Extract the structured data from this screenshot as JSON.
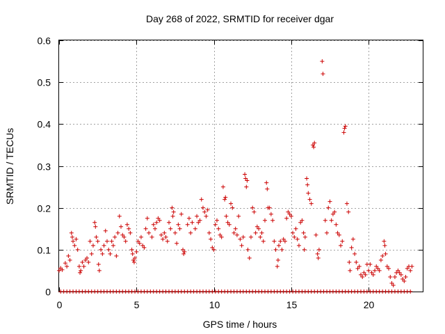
{
  "chart_data": {
    "type": "scatter",
    "title": "Day 268 of 2022, SRMTID for receiver dgar",
    "xlabel": "GPS time / hours",
    "ylabel": "SRMTID / TECUs",
    "xlim": [
      0,
      23.5
    ],
    "ylim": [
      0,
      0.6
    ],
    "xticks": [
      0,
      5,
      10,
      15,
      20
    ],
    "yticks": [
      0,
      0.1,
      0.2,
      0.3,
      0.4,
      0.5,
      0.6
    ],
    "ytick_labels": [
      "0",
      "0.1",
      "0.2",
      "0.3",
      "0.4",
      "0.5",
      "0.6"
    ],
    "grid": true,
    "marker": "plus",
    "color": "#cc0000",
    "series": [
      {
        "name": "SRMTID",
        "points": [
          [
            0.0,
            0.05
          ],
          [
            0.1,
            0.056
          ],
          [
            0.2,
            0.052
          ],
          [
            0.4,
            0.068
          ],
          [
            0.5,
            0.06
          ],
          [
            0.6,
            0.085
          ],
          [
            0.7,
            0.075
          ],
          [
            0.8,
            0.14
          ],
          [
            0.85,
            0.13
          ],
          [
            0.9,
            0.12
          ],
          [
            1.0,
            0.11
          ],
          [
            1.1,
            0.125
          ],
          [
            1.2,
            0.1
          ],
          [
            1.3,
            0.06
          ],
          [
            1.35,
            0.045
          ],
          [
            1.4,
            0.05
          ],
          [
            1.5,
            0.07
          ],
          [
            1.6,
            0.06
          ],
          [
            1.7,
            0.075
          ],
          [
            1.8,
            0.08
          ],
          [
            1.9,
            0.07
          ],
          [
            2.0,
            0.12
          ],
          [
            2.1,
            0.09
          ],
          [
            2.2,
            0.11
          ],
          [
            2.3,
            0.165
          ],
          [
            2.35,
            0.155
          ],
          [
            2.4,
            0.13
          ],
          [
            2.5,
            0.12
          ],
          [
            2.55,
            0.065
          ],
          [
            2.6,
            0.05
          ],
          [
            2.7,
            0.1
          ],
          [
            2.8,
            0.09
          ],
          [
            2.9,
            0.11
          ],
          [
            3.0,
            0.145
          ],
          [
            3.1,
            0.12
          ],
          [
            3.2,
            0.1
          ],
          [
            3.3,
            0.09
          ],
          [
            3.4,
            0.12
          ],
          [
            3.5,
            0.11
          ],
          [
            3.6,
            0.13
          ],
          [
            3.7,
            0.085
          ],
          [
            3.8,
            0.14
          ],
          [
            3.9,
            0.18
          ],
          [
            4.0,
            0.155
          ],
          [
            4.1,
            0.135
          ],
          [
            4.2,
            0.13
          ],
          [
            4.3,
            0.12
          ],
          [
            4.4,
            0.16
          ],
          [
            4.5,
            0.15
          ],
          [
            4.6,
            0.14
          ],
          [
            4.7,
            0.1
          ],
          [
            4.75,
            0.09
          ],
          [
            4.8,
            0.075
          ],
          [
            4.85,
            0.07
          ],
          [
            4.9,
            0.08
          ],
          [
            5.0,
            0.095
          ],
          [
            5.1,
            0.12
          ],
          [
            5.2,
            0.115
          ],
          [
            5.3,
            0.13
          ],
          [
            5.4,
            0.11
          ],
          [
            5.5,
            0.105
          ],
          [
            5.6,
            0.15
          ],
          [
            5.7,
            0.175
          ],
          [
            5.8,
            0.14
          ],
          [
            6.0,
            0.13
          ],
          [
            6.1,
            0.16
          ],
          [
            6.2,
            0.15
          ],
          [
            6.3,
            0.165
          ],
          [
            6.4,
            0.175
          ],
          [
            6.5,
            0.17
          ],
          [
            6.6,
            0.135
          ],
          [
            6.7,
            0.125
          ],
          [
            6.8,
            0.14
          ],
          [
            6.9,
            0.13
          ],
          [
            7.0,
            0.12
          ],
          [
            7.1,
            0.165
          ],
          [
            7.2,
            0.15
          ],
          [
            7.3,
            0.2
          ],
          [
            7.35,
            0.18
          ],
          [
            7.4,
            0.19
          ],
          [
            7.5,
            0.14
          ],
          [
            7.6,
            0.115
          ],
          [
            7.7,
            0.16
          ],
          [
            7.8,
            0.15
          ],
          [
            7.9,
            0.185
          ],
          [
            8.0,
            0.1
          ],
          [
            8.05,
            0.09
          ],
          [
            8.1,
            0.095
          ],
          [
            8.3,
            0.16
          ],
          [
            8.4,
            0.175
          ],
          [
            8.5,
            0.14
          ],
          [
            8.6,
            0.165
          ],
          [
            8.8,
            0.15
          ],
          [
            8.9,
            0.18
          ],
          [
            9.0,
            0.165
          ],
          [
            9.1,
            0.17
          ],
          [
            9.2,
            0.22
          ],
          [
            9.3,
            0.2
          ],
          [
            9.4,
            0.19
          ],
          [
            9.5,
            0.18
          ],
          [
            9.6,
            0.195
          ],
          [
            9.7,
            0.14
          ],
          [
            9.8,
            0.125
          ],
          [
            9.9,
            0.105
          ],
          [
            10.0,
            0.1
          ],
          [
            10.1,
            0.16
          ],
          [
            10.2,
            0.17
          ],
          [
            10.3,
            0.15
          ],
          [
            10.4,
            0.135
          ],
          [
            10.5,
            0.13
          ],
          [
            10.6,
            0.25
          ],
          [
            10.7,
            0.22
          ],
          [
            10.75,
            0.225
          ],
          [
            10.8,
            0.18
          ],
          [
            10.9,
            0.165
          ],
          [
            11.0,
            0.16
          ],
          [
            11.1,
            0.21
          ],
          [
            11.2,
            0.2
          ],
          [
            11.3,
            0.14
          ],
          [
            11.4,
            0.15
          ],
          [
            11.5,
            0.135
          ],
          [
            11.6,
            0.18
          ],
          [
            11.7,
            0.125
          ],
          [
            11.8,
            0.11
          ],
          [
            11.9,
            0.13
          ],
          [
            12.0,
            0.28
          ],
          [
            12.05,
            0.27
          ],
          [
            12.1,
            0.25
          ],
          [
            12.15,
            0.265
          ],
          [
            12.2,
            0.1
          ],
          [
            12.3,
            0.08
          ],
          [
            12.4,
            0.13
          ],
          [
            12.5,
            0.2
          ],
          [
            12.6,
            0.19
          ],
          [
            12.7,
            0.14
          ],
          [
            12.8,
            0.155
          ],
          [
            12.9,
            0.15
          ],
          [
            13.0,
            0.13
          ],
          [
            13.1,
            0.14
          ],
          [
            13.2,
            0.12
          ],
          [
            13.3,
            0.17
          ],
          [
            13.4,
            0.26
          ],
          [
            13.45,
            0.245
          ],
          [
            13.5,
            0.2
          ],
          [
            13.6,
            0.2
          ],
          [
            13.7,
            0.185
          ],
          [
            13.8,
            0.17
          ],
          [
            13.9,
            0.12
          ],
          [
            14.0,
            0.1
          ],
          [
            14.1,
            0.06
          ],
          [
            14.15,
            0.075
          ],
          [
            14.2,
            0.11
          ],
          [
            14.3,
            0.12
          ],
          [
            14.4,
            0.1
          ],
          [
            14.5,
            0.125
          ],
          [
            14.6,
            0.12
          ],
          [
            14.7,
            0.175
          ],
          [
            14.8,
            0.19
          ],
          [
            14.9,
            0.185
          ],
          [
            15.0,
            0.18
          ],
          [
            15.1,
            0.14
          ],
          [
            15.2,
            0.13
          ],
          [
            15.3,
            0.15
          ],
          [
            15.4,
            0.125
          ],
          [
            15.5,
            0.11
          ],
          [
            15.6,
            0.165
          ],
          [
            15.7,
            0.17
          ],
          [
            15.8,
            0.14
          ],
          [
            15.85,
            0.1
          ],
          [
            15.9,
            0.13
          ],
          [
            16.0,
            0.27
          ],
          [
            16.05,
            0.255
          ],
          [
            16.1,
            0.235
          ],
          [
            16.2,
            0.22
          ],
          [
            16.3,
            0.21
          ],
          [
            16.4,
            0.35
          ],
          [
            16.45,
            0.345
          ],
          [
            16.5,
            0.355
          ],
          [
            16.6,
            0.135
          ],
          [
            16.7,
            0.09
          ],
          [
            16.75,
            0.08
          ],
          [
            16.8,
            0.1
          ],
          [
            17.0,
            0.55
          ],
          [
            17.05,
            0.52
          ],
          [
            17.2,
            0.17
          ],
          [
            17.3,
            0.14
          ],
          [
            17.4,
            0.2
          ],
          [
            17.5,
            0.215
          ],
          [
            17.6,
            0.17
          ],
          [
            17.7,
            0.185
          ],
          [
            17.8,
            0.19
          ],
          [
            17.9,
            0.16
          ],
          [
            18.0,
            0.14
          ],
          [
            18.1,
            0.135
          ],
          [
            18.2,
            0.11
          ],
          [
            18.3,
            0.12
          ],
          [
            18.4,
            0.38
          ],
          [
            18.45,
            0.39
          ],
          [
            18.5,
            0.395
          ],
          [
            18.6,
            0.21
          ],
          [
            18.7,
            0.19
          ],
          [
            18.75,
            0.07
          ],
          [
            18.8,
            0.05
          ],
          [
            18.9,
            0.105
          ],
          [
            19.0,
            0.125
          ],
          [
            19.1,
            0.09
          ],
          [
            19.2,
            0.07
          ],
          [
            19.3,
            0.055
          ],
          [
            19.4,
            0.06
          ],
          [
            19.5,
            0.04
          ],
          [
            19.6,
            0.035
          ],
          [
            19.7,
            0.045
          ],
          [
            19.8,
            0.04
          ],
          [
            19.9,
            0.065
          ],
          [
            20.0,
            0.05
          ],
          [
            20.1,
            0.065
          ],
          [
            20.2,
            0.045
          ],
          [
            20.3,
            0.04
          ],
          [
            20.4,
            0.05
          ],
          [
            20.5,
            0.06
          ],
          [
            20.6,
            0.055
          ],
          [
            20.7,
            0.05
          ],
          [
            20.8,
            0.075
          ],
          [
            20.9,
            0.085
          ],
          [
            21.0,
            0.12
          ],
          [
            21.05,
            0.11
          ],
          [
            21.1,
            0.09
          ],
          [
            21.2,
            0.06
          ],
          [
            21.3,
            0.055
          ],
          [
            21.4,
            0.035
          ],
          [
            21.5,
            0.02
          ],
          [
            21.6,
            0.015
          ],
          [
            21.7,
            0.035
          ],
          [
            21.8,
            0.045
          ],
          [
            21.9,
            0.05
          ],
          [
            22.0,
            0.045
          ],
          [
            22.1,
            0.04
          ],
          [
            22.2,
            0.03
          ],
          [
            22.3,
            0.025
          ],
          [
            22.4,
            0.035
          ],
          [
            22.5,
            0.055
          ],
          [
            22.6,
            0.06
          ],
          [
            22.7,
            0.05
          ],
          [
            22.8,
            0.06
          ]
        ],
        "zero_run": {
          "from": 0.1,
          "to": 22.8,
          "step": 0.2,
          "value": 0
        }
      }
    ]
  }
}
